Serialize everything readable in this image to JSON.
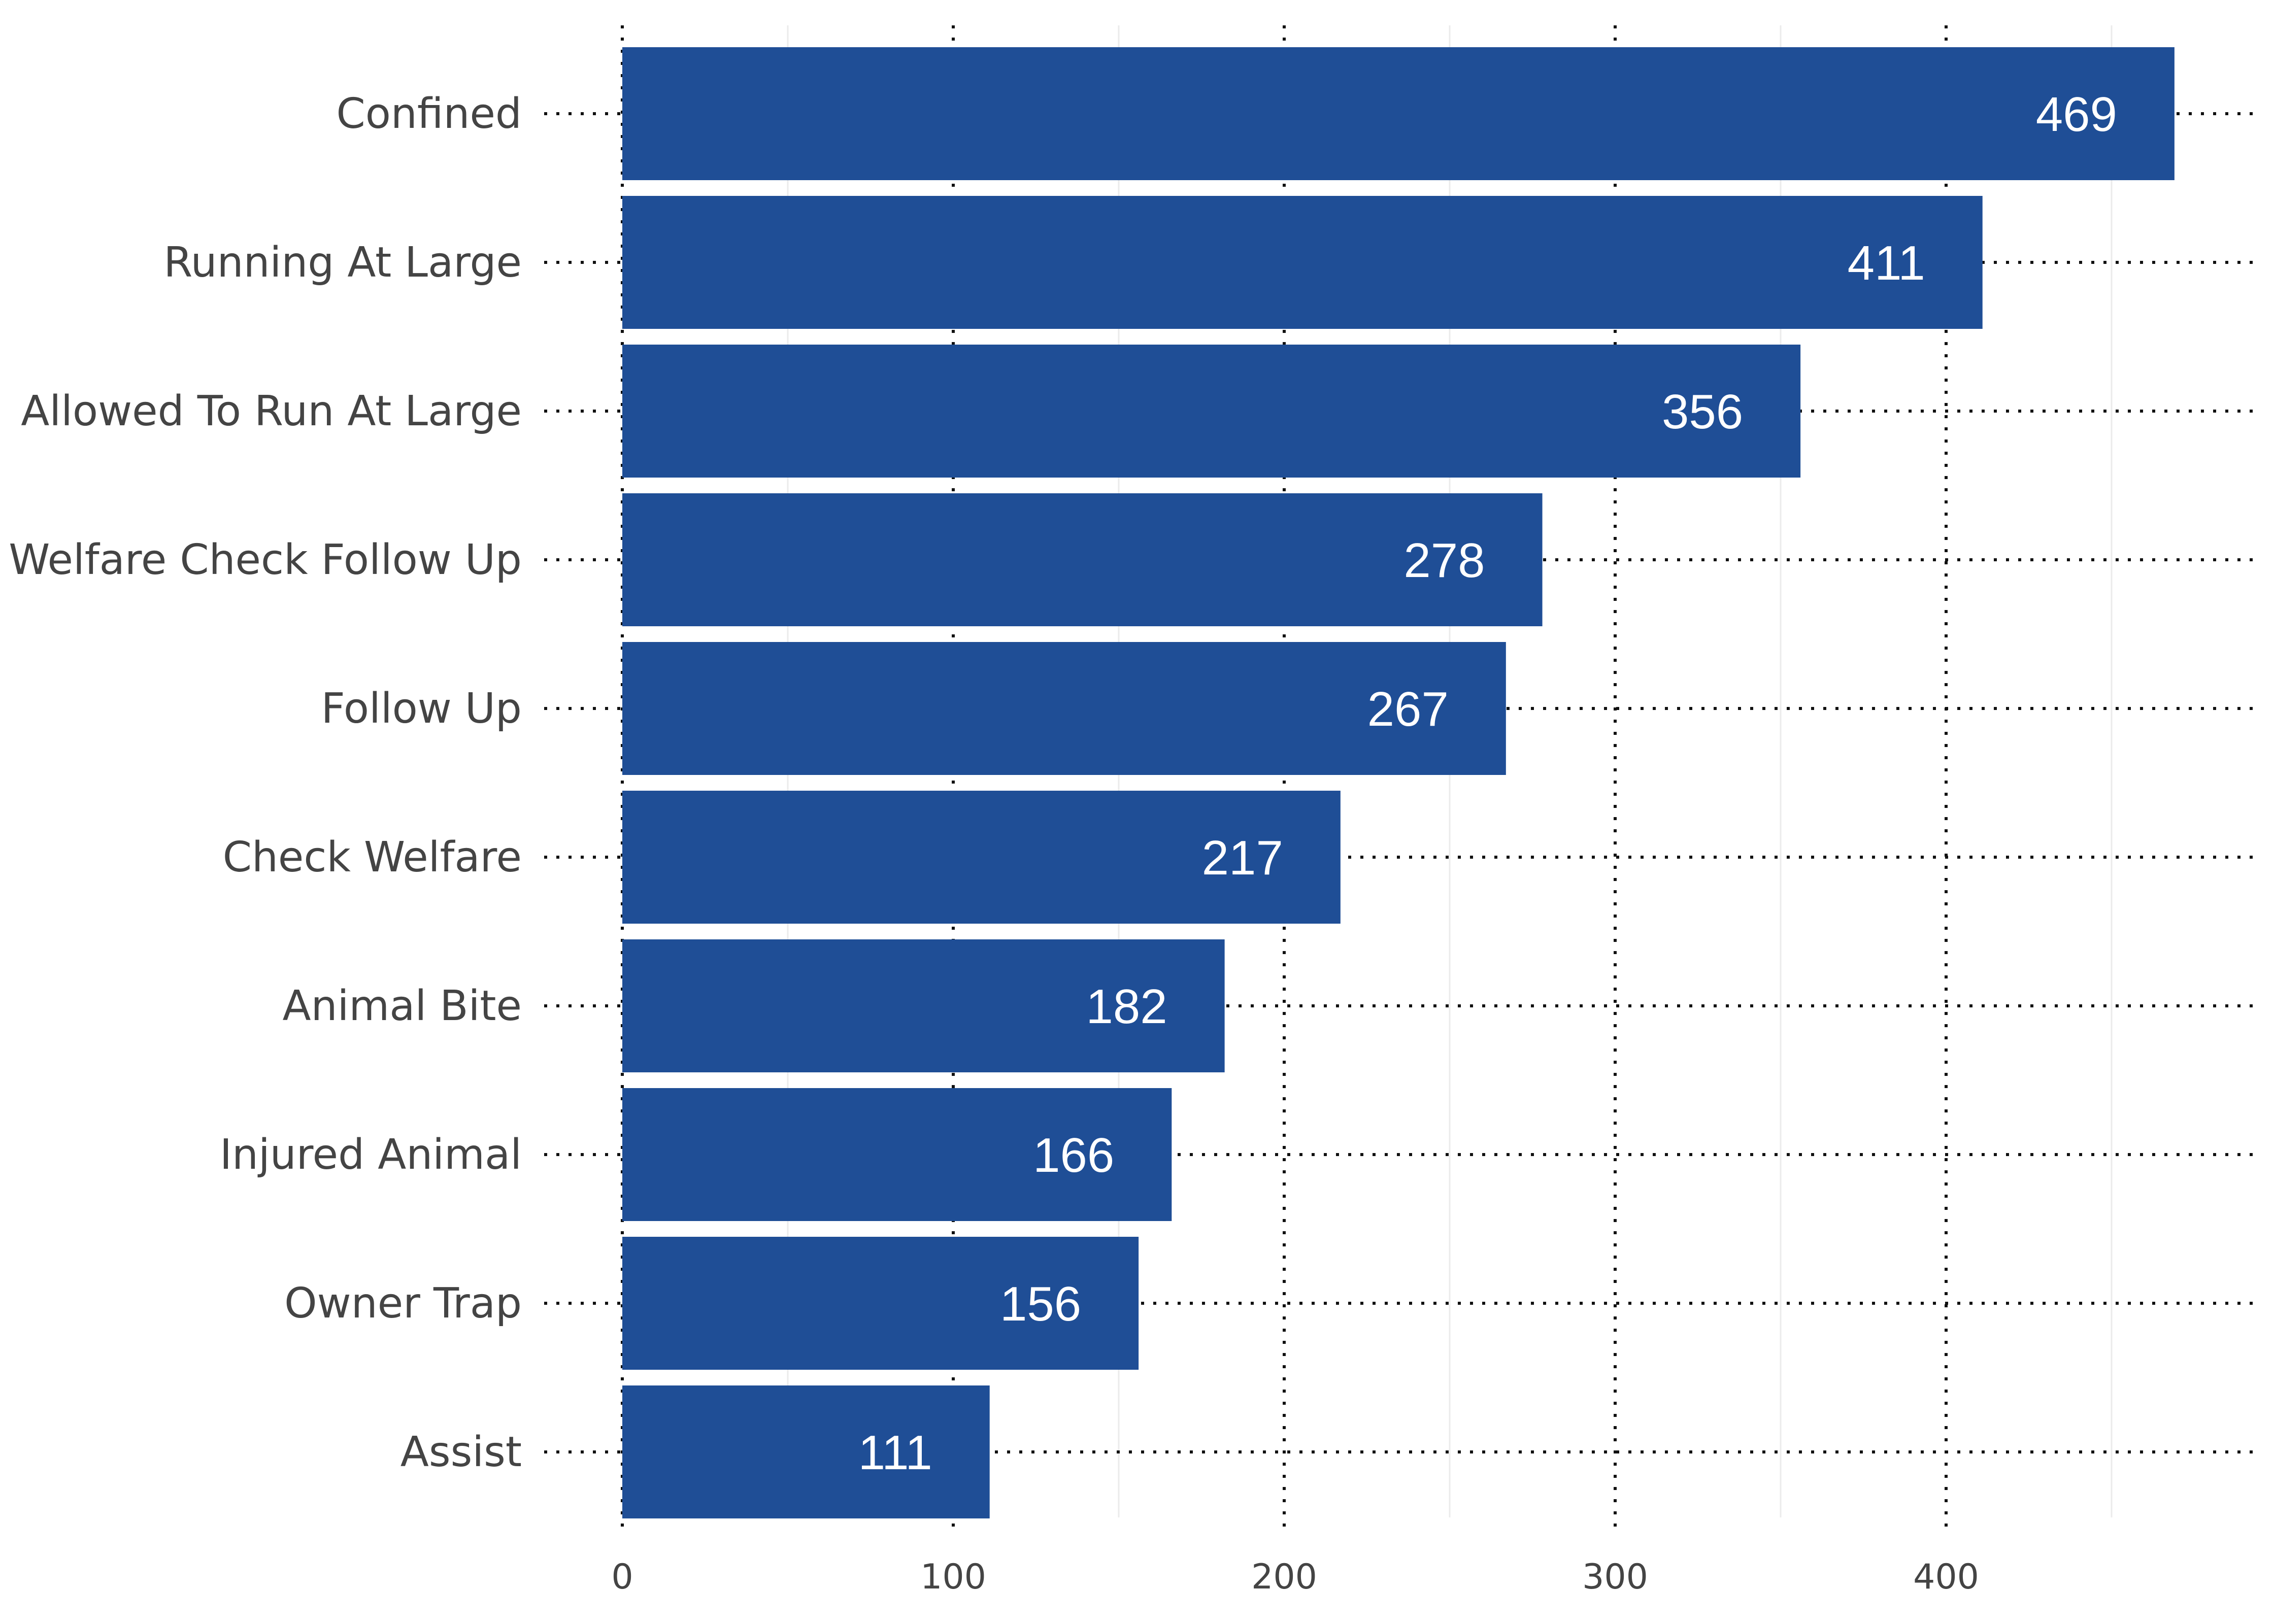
{
  "chart_data": {
    "type": "bar",
    "orientation": "horizontal",
    "title": "",
    "xlabel": "",
    "ylabel": "",
    "categories": [
      "Confined",
      "Running At Large",
      "Allowed To Run At Large",
      "Welfare Check Follow Up",
      "Follow Up",
      "Check Welfare",
      "Animal Bite",
      "Injured Animal",
      "Owner Trap",
      "Assist"
    ],
    "values": [
      469,
      411,
      356,
      278,
      267,
      217,
      182,
      166,
      156,
      111
    ],
    "value_labels": [
      "469",
      "411",
      "356",
      "278",
      "267",
      "217",
      "182",
      "166",
      "156",
      "111"
    ],
    "xlim": [
      0,
      490
    ],
    "xticks": [
      0,
      100,
      200,
      300,
      400
    ],
    "xtick_labels": [
      "0",
      "100",
      "200",
      "300",
      "400"
    ],
    "minor_grid_values": [
      50,
      150,
      250,
      350,
      450
    ],
    "grid": true,
    "grid_style": "dotted",
    "legend": "none",
    "colors": {
      "bar": "#1f4e96",
      "value_text": "#ffffff",
      "axis_text": "#444444",
      "dotted_grid": "#111111",
      "minor_grid": "#ebebeb"
    }
  }
}
